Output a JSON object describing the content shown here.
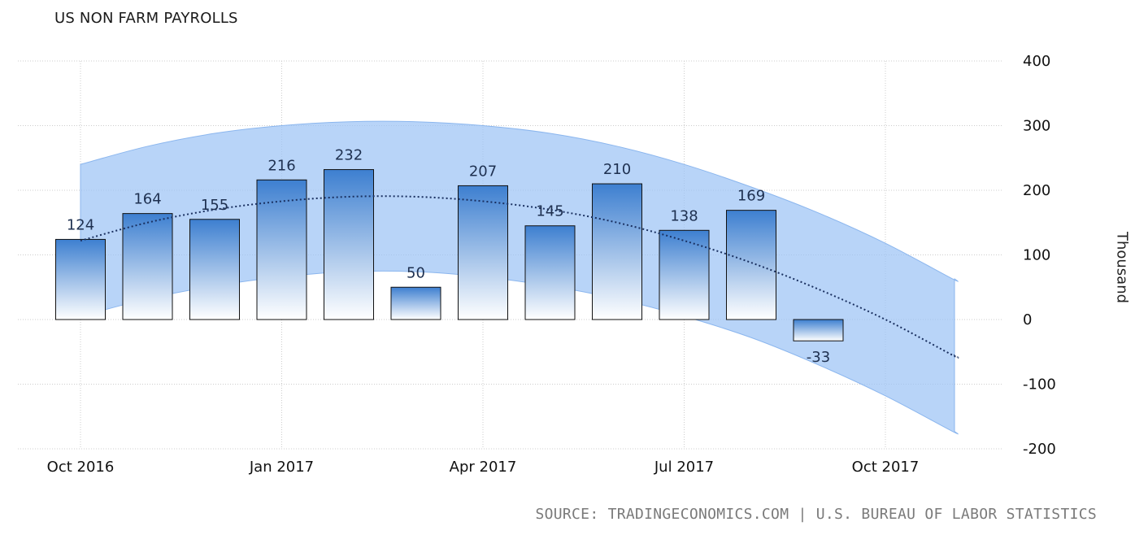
{
  "chart_data": {
    "type": "bar",
    "title": "US NON FARM PAYROLLS",
    "source": "SOURCE: TRADINGECONOMICS.COM | U.S. BUREAU OF LABOR STATISTICS",
    "ylabel": "Thousand",
    "ylim": [
      -200,
      400
    ],
    "yticks": [
      400,
      300,
      200,
      100,
      0,
      -100,
      -200
    ],
    "xtick_labels": [
      "Oct 2016",
      "Jan 2017",
      "Apr 2017",
      "Jul 2017",
      "Oct 2017"
    ],
    "x_range": [
      "2016-10",
      "2018-01"
    ],
    "grid": true,
    "categories": [
      "2016-10",
      "2016-11",
      "2016-12",
      "2017-01",
      "2017-02",
      "2017-03",
      "2017-04",
      "2017-05",
      "2017-06",
      "2017-07",
      "2017-08",
      "2017-09"
    ],
    "values": [
      124,
      164,
      155,
      216,
      232,
      50,
      207,
      145,
      210,
      138,
      169,
      -33
    ],
    "data_labels": [
      "124",
      "164",
      "155",
      "216",
      "232",
      "50",
      "207",
      "145",
      "210",
      "138",
      "169",
      "-33"
    ],
    "forecast": {
      "x": [
        "2016-10",
        "2016-11",
        "2016-12",
        "2017-01",
        "2017-02",
        "2017-03",
        "2017-04",
        "2017-05",
        "2017-06",
        "2017-07",
        "2017-08",
        "2017-09",
        "2017-10",
        "2017-11",
        "2017-12"
      ],
      "trend": [
        122,
        150,
        170,
        183,
        190,
        190,
        183,
        170,
        150,
        122,
        88,
        47,
        0,
        -55,
        -55
      ],
      "upper": [
        240,
        268,
        288,
        300,
        306,
        306,
        300,
        288,
        268,
        240,
        205,
        165,
        118,
        63,
        63
      ],
      "lower": [
        5,
        32,
        52,
        66,
        74,
        74,
        66,
        52,
        32,
        5,
        -28,
        -70,
        -118,
        -173,
        -173
      ]
    },
    "colors": {
      "bar_top": "#3d7fd0",
      "bar_bottom": "#ffffff",
      "band": "#9cc3f5",
      "trend": "#1a3060",
      "grid": "#cccccc"
    }
  }
}
